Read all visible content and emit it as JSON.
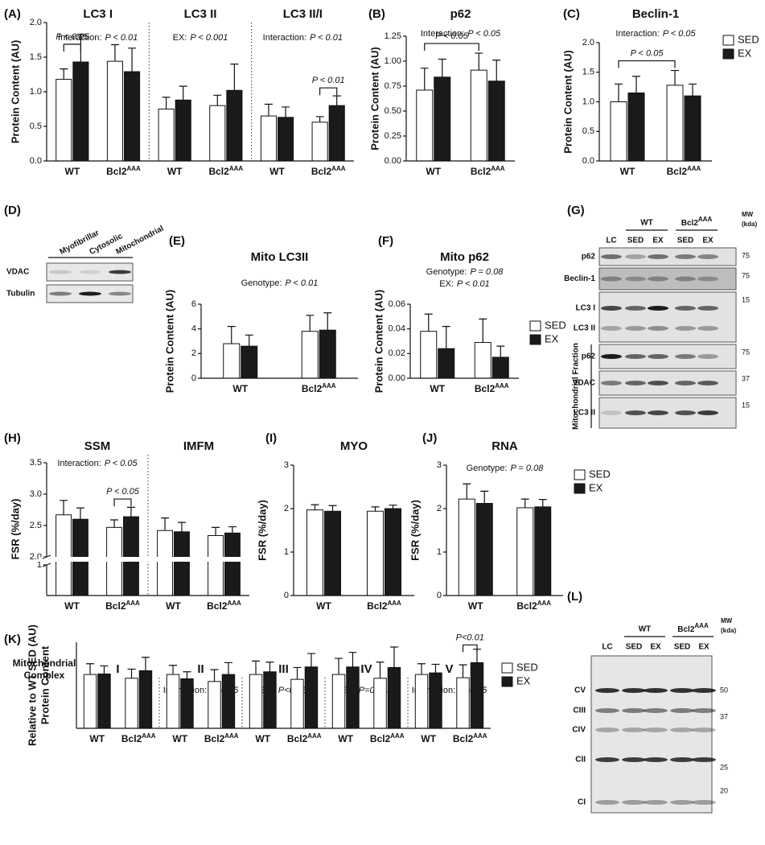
{
  "chart_data": [
    {
      "type": "bar",
      "panel": "(A)",
      "ylabel": "Protein Content (AU)",
      "ylim": [
        0,
        2
      ],
      "yticks": [
        {
          "value": 0,
          "label": "0.0"
        },
        0.5,
        {
          "value": 1,
          "label": "1.0"
        },
        1.5,
        {
          "value": 2,
          "label": "2.0"
        }
      ],
      "sections": [
        {
          "title": "LC3 I",
          "annotations": [
            {
              "label": "Interaction:",
              "p": "P < 0.01"
            }
          ],
          "categories": [
            "WT",
            {
              "text": "Bcl2",
              "sup": "AAA"
            }
          ]
        },
        {
          "title": "LC3 II",
          "annotations": [
            {
              "label": "EX:",
              "p": "P < 0.001"
            }
          ],
          "categories": [
            "WT",
            {
              "text": "Bcl2",
              "sup": "AAA"
            }
          ]
        },
        {
          "title": "LC3 II/I",
          "annotations": [
            {
              "label": "Interaction:",
              "p": "P < 0.01"
            }
          ],
          "categories": [
            "WT",
            {
              "text": "Bcl2",
              "sup": "AAA"
            }
          ]
        }
      ],
      "series": [
        {
          "color": "#ffffff",
          "values": [
            1.18,
            1.44,
            0.75,
            0.8,
            0.65,
            0.56
          ],
          "errors": [
            0.15,
            0.24,
            0.17,
            0.15,
            0.17,
            0.08
          ]
        },
        {
          "color": "#1a1a1a",
          "values": [
            1.43,
            1.29,
            0.88,
            1.02,
            0.63,
            0.8
          ],
          "errors": [
            0.4,
            0.34,
            0.2,
            0.38,
            0.15,
            0.14
          ]
        }
      ],
      "brackets": [
        {
          "text": "P < 0.05",
          "categories": [
            0
          ]
        },
        {
          "text": "P < 0.01",
          "categories": [
            5
          ]
        }
      ]
    },
    {
      "type": "bar",
      "panel": "(B)",
      "ylabel": "Protein Content (AU)",
      "ylim": [
        0,
        1.25
      ],
      "yticks": [
        {
          "value": 0,
          "label": "0.00"
        },
        0.25,
        {
          "value": 0.5,
          "label": "0.50"
        },
        0.75,
        {
          "value": 1,
          "label": "1.00"
        },
        1.25
      ],
      "sections": [
        {
          "title": "p62",
          "annotations": [
            {
              "label": "Interaction:",
              "p": "P < 0.05"
            }
          ],
          "categories": [
            "WT",
            {
              "text": "Bcl2",
              "sup": "AAA"
            }
          ]
        }
      ],
      "series": [
        {
          "color": "#ffffff",
          "values": [
            0.71,
            0.91
          ],
          "errors": [
            0.22,
            0.17
          ]
        },
        {
          "color": "#1a1a1a",
          "values": [
            0.84,
            0.8
          ],
          "errors": [
            0.18,
            0.21
          ]
        }
      ],
      "brackets": [
        {
          "text": "P < 0.05",
          "categories": [
            0,
            1
          ]
        }
      ]
    },
    {
      "type": "bar",
      "panel": "(C)",
      "ylabel": "Protein Content (AU)",
      "ylim": [
        0,
        2
      ],
      "legend": "right",
      "yticks": [
        {
          "value": 0,
          "label": "0.0"
        },
        0.5,
        {
          "value": 1,
          "label": "1.0"
        },
        1.5,
        {
          "value": 2,
          "label": "2.0"
        }
      ],
      "sections": [
        {
          "title": "Beclin-1",
          "annotations": [
            {
              "label": "Interaction:",
              "p": "P < 0.05"
            }
          ],
          "categories": [
            "WT",
            {
              "text": "Bcl2",
              "sup": "AAA"
            }
          ]
        }
      ],
      "series": [
        {
          "name": "SED",
          "color": "#ffffff",
          "values": [
            1.0,
            1.28
          ],
          "errors": [
            0.3,
            0.25
          ]
        },
        {
          "name": "EX",
          "color": "#1a1a1a",
          "values": [
            1.15,
            1.1
          ],
          "errors": [
            0.28,
            0.2
          ]
        }
      ],
      "brackets": [
        {
          "text": "P < 0.05",
          "categories": [
            0,
            1
          ]
        }
      ]
    },
    {
      "type": "bar",
      "panel": "(E)",
      "ylabel": "Protein Content (AU)",
      "ylim": [
        0,
        6
      ],
      "yticks": [
        0,
        2,
        4,
        6
      ],
      "sections": [
        {
          "title": "Mito LC3II",
          "annotations": [
            {
              "label": "Genotype:",
              "p": "P < 0.01"
            }
          ],
          "categories": [
            "WT",
            {
              "text": "Bcl2",
              "sup": "AAA"
            }
          ]
        }
      ],
      "series": [
        {
          "color": "#ffffff",
          "values": [
            2.8,
            3.8
          ],
          "errors": [
            1.4,
            1.3
          ]
        },
        {
          "color": "#1a1a1a",
          "values": [
            2.6,
            3.9
          ],
          "errors": [
            0.9,
            1.4
          ]
        }
      ]
    },
    {
      "type": "bar",
      "panel": "(F)",
      "ylabel": "Protein Content (AU)",
      "ylim": [
        0,
        0.06
      ],
      "legend": "right",
      "yticks": [
        {
          "value": 0,
          "label": "0.00"
        },
        0.02,
        0.04,
        0.06
      ],
      "sections": [
        {
          "title": "Mito p62",
          "annotations": [
            {
              "label": "Genotype:",
              "p": "P = 0.08"
            },
            {
              "label": "EX:",
              "p": "P < 0.01"
            }
          ],
          "categories": [
            "WT",
            {
              "text": "Bcl2",
              "sup": "AAA"
            }
          ]
        }
      ],
      "series": [
        {
          "name": "SED",
          "color": "#ffffff",
          "values": [
            0.038,
            0.029
          ],
          "errors": [
            0.014,
            0.019
          ]
        },
        {
          "name": "EX",
          "color": "#1a1a1a",
          "values": [
            0.024,
            0.017
          ],
          "errors": [
            0.018,
            0.009
          ]
        }
      ]
    },
    {
      "type": "bar",
      "panel": "(H)",
      "ylabel": "FSR (%/day)",
      "ylim": [
        0,
        3.5
      ],
      "ybreak": [
        1,
        2
      ],
      "yticks": [
        1,
        {
          "value": 2,
          "label": "2.0"
        },
        2.5,
        {
          "value": 3,
          "label": "3.0"
        },
        3.5
      ],
      "sections": [
        {
          "title": "SSM",
          "annotations": [
            {
              "label": "Interaction:",
              "p": "P < 0.05"
            }
          ],
          "categories": [
            "WT",
            {
              "text": "Bcl2",
              "sup": "AAA"
            }
          ]
        },
        {
          "title": "IMFM",
          "annotations": [],
          "categories": [
            "WT",
            {
              "text": "Bcl2",
              "sup": "AAA"
            }
          ]
        }
      ],
      "series": [
        {
          "color": "#ffffff",
          "values": [
            2.67,
            2.47,
            2.42,
            2.34
          ],
          "errors": [
            0.23,
            0.12,
            0.2,
            0.13
          ]
        },
        {
          "color": "#1a1a1a",
          "values": [
            2.6,
            2.64,
            2.4,
            2.38
          ],
          "errors": [
            0.18,
            0.15,
            0.15,
            0.1
          ]
        }
      ],
      "brackets": [
        {
          "text": "P < 0.05",
          "categories": [
            1
          ]
        }
      ]
    },
    {
      "type": "bar",
      "panel": "(I)",
      "ylabel": "FSR (%/day)",
      "ylim": [
        0,
        3
      ],
      "yticks": [
        0,
        1,
        2,
        3
      ],
      "sections": [
        {
          "title": "MYO",
          "annotations": [],
          "categories": [
            "WT",
            {
              "text": "Bcl2",
              "sup": "AAA"
            }
          ]
        }
      ],
      "series": [
        {
          "color": "#ffffff",
          "values": [
            1.97,
            1.94
          ],
          "errors": [
            0.12,
            0.1
          ]
        },
        {
          "color": "#1a1a1a",
          "values": [
            1.94,
            2.0
          ],
          "errors": [
            0.13,
            0.08
          ]
        }
      ]
    },
    {
      "type": "bar",
      "panel": "(J)",
      "ylabel": "FSR (%/day)",
      "ylim": [
        0,
        3
      ],
      "yticks": [
        0,
        1,
        2,
        3
      ],
      "legend": "right",
      "sections": [
        {
          "title": "RNA",
          "annotations": [
            {
              "label": "Genotype:",
              "p": "P = 0.08"
            }
          ],
          "categories": [
            "WT",
            {
              "text": "Bcl2",
              "sup": "AAA"
            }
          ]
        }
      ],
      "series": [
        {
          "name": "SED",
          "color": "#ffffff",
          "values": [
            2.22,
            2.02
          ],
          "errors": [
            0.35,
            0.2
          ]
        },
        {
          "name": "EX",
          "color": "#1a1a1a",
          "values": [
            2.12,
            2.04
          ],
          "errors": [
            0.28,
            0.17
          ]
        }
      ]
    },
    {
      "type": "bar",
      "panel": "(K)",
      "ylabel": [
        "Protein Content",
        "Relative to WT SED (AU)"
      ],
      "row_label": [
        "Mitochondrial",
        "Complex"
      ],
      "ylim": [
        0,
        1.6
      ],
      "legend": "right",
      "sections": [
        {
          "title": "I",
          "annotations": [],
          "categories": [
            "WT",
            {
              "text": "Bcl2",
              "sup": "AAA"
            }
          ]
        },
        {
          "title": "II",
          "annotations": [
            {
              "label": "Interaction:",
              "p": "P<0.05"
            }
          ],
          "categories": [
            "WT",
            {
              "text": "Bcl2",
              "sup": "AAA"
            }
          ]
        },
        {
          "title": "III",
          "annotations": [
            {
              "label": "EX:",
              "p": "P<0.05"
            }
          ],
          "categories": [
            "WT",
            {
              "text": "Bcl2",
              "sup": "AAA"
            }
          ]
        },
        {
          "title": "IV",
          "annotations": [
            {
              "label": "EX:",
              "p": "P=0.055"
            }
          ],
          "categories": [
            "WT",
            {
              "text": "Bcl2",
              "sup": "AAA"
            }
          ]
        },
        {
          "title": "V",
          "annotations": [
            {
              "label": "Interaction:",
              "p": "P<0.05"
            }
          ],
          "categories": [
            "WT",
            {
              "text": "Bcl2",
              "sup": "AAA"
            }
          ]
        }
      ],
      "series": [
        {
          "name": "SED",
          "color": "#ffffff",
          "values": [
            1.0,
            0.93,
            1.0,
            0.87,
            1.0,
            0.91,
            1.0,
            0.93,
            1.0,
            0.94
          ],
          "errors": [
            0.2,
            0.17,
            0.17,
            0.22,
            0.25,
            0.22,
            0.3,
            0.3,
            0.2,
            0.24
          ]
        },
        {
          "name": "EX",
          "color": "#1a1a1a",
          "values": [
            1.01,
            1.07,
            0.92,
            1.0,
            1.05,
            1.14,
            1.14,
            1.13,
            1.03,
            1.22
          ],
          "errors": [
            0.15,
            0.25,
            0.13,
            0.22,
            0.18,
            0.25,
            0.27,
            0.38,
            0.16,
            0.25
          ]
        }
      ],
      "brackets": [
        {
          "text": "P<0.01",
          "categories": [
            9
          ]
        }
      ]
    }
  ],
  "blots": [
    {
      "panel": "(D)",
      "lanes": [
        "Myofibrillar",
        "Cytosolic",
        "Mitochondrial"
      ],
      "rows": [
        {
          "label": "VDAC"
        },
        {
          "label": "Tubulin"
        }
      ]
    },
    {
      "panel": "(G)",
      "lanes": [
        "LC",
        "SED",
        "EX",
        "SED",
        "EX"
      ],
      "groups": [
        "WT",
        {
          "text": "Bcl2",
          "sup": "AAA"
        }
      ],
      "mw_header": [
        "MW",
        "(kda)"
      ],
      "rows": [
        {
          "label": "p62",
          "mw": 75
        },
        {
          "label": "Beclin-1",
          "mw": 75
        },
        {
          "label": [
            "LC3 I",
            "LC3 II"
          ],
          "mw": 15
        },
        {
          "label": "p62",
          "mw": 75
        },
        {
          "label": "VDAC",
          "mw": 37
        },
        {
          "label": "LC3 II",
          "mw": 15
        }
      ],
      "fraction_label": "Mitochondrial Fraction"
    },
    {
      "panel": "(L)",
      "lanes": [
        "LC",
        "SED",
        "EX",
        "SED",
        "EX"
      ],
      "groups": [
        "WT",
        {
          "text": "Bcl2",
          "sup": "AAA"
        }
      ],
      "mw_header": [
        "MW",
        "(kda)"
      ],
      "rows": [
        {
          "label": "CV",
          "mw": 50
        },
        {
          "label": "CIII",
          "mw": 37
        },
        {
          "label": "CIV"
        },
        {
          "label": "CII",
          "mw": 25
        },
        {
          "label": "CI",
          "mw": 20
        }
      ]
    }
  ]
}
